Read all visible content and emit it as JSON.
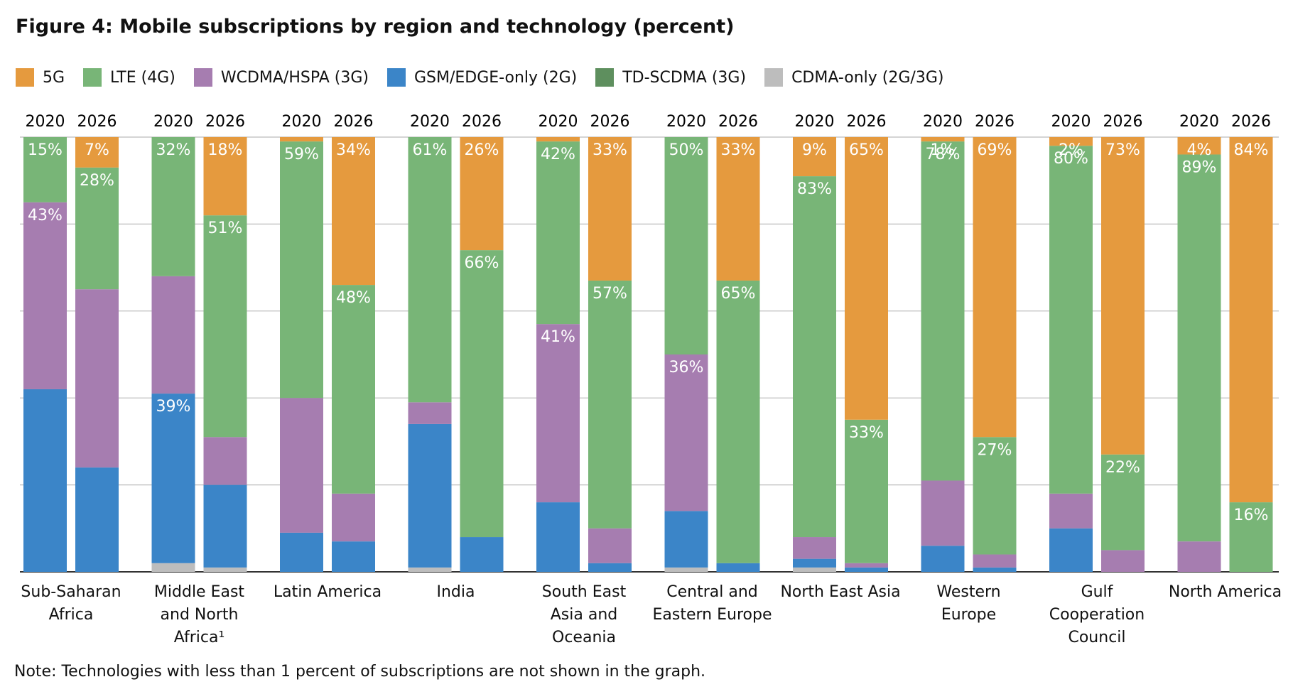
{
  "chart_data": {
    "type": "stacked_bar",
    "title": "Figure 4: Mobile subscriptions by region and technology (percent)",
    "note": "Note: Technologies with less than 1 percent of subscriptions are not shown in the graph.",
    "groups": [
      "Sub-Saharan Africa",
      "Middle East and North Africa¹",
      "Latin America",
      "India",
      "South East Asia and Oceania",
      "Central and Eastern Europe",
      "North East Asia",
      "Western Europe",
      "Gulf Cooperation Council",
      "North America"
    ],
    "categories": [
      "2020",
      "2026",
      "2020",
      "2026",
      "2020",
      "2026",
      "2020",
      "2026",
      "2020",
      "2026",
      "2020",
      "2026",
      "2020",
      "2026",
      "2020",
      "2026",
      "2020",
      "2026",
      "2020",
      "2026"
    ],
    "ylim": [
      0,
      100
    ],
    "yticks": [
      0,
      20,
      40,
      60,
      80,
      100
    ],
    "grid": true,
    "series": [
      {
        "name": "5G",
        "color": "#e59a3e",
        "values": [
          0,
          7,
          0,
          18,
          1,
          34,
          0,
          26,
          1,
          33,
          0,
          33,
          9,
          65,
          1,
          69,
          2,
          73,
          4,
          84
        ],
        "value_labels": [
          null,
          "7%",
          null,
          "18%",
          null,
          "34%",
          null,
          "26%",
          null,
          "33%",
          null,
          "33%",
          "9%",
          "65%",
          "1%",
          "69%",
          "2%",
          "73%",
          "4%",
          "84%"
        ]
      },
      {
        "name": "LTE (4G)",
        "color": "#78b577",
        "values": [
          15,
          28,
          32,
          51,
          59,
          48,
          61,
          66,
          42,
          57,
          50,
          65,
          83,
          33,
          78,
          27,
          80,
          22,
          89,
          16
        ],
        "value_labels": [
          "15%",
          "28%",
          "32%",
          "51%",
          "59%",
          "48%",
          "61%",
          "66%",
          "42%",
          "57%",
          "50%",
          "65%",
          "83%",
          "33%",
          "78%",
          "27%",
          "80%",
          "22%",
          "89%",
          "16%"
        ]
      },
      {
        "name": "WCDMA/HSPA (3G)",
        "color": "#a67db0",
        "values": [
          43,
          41,
          27,
          11,
          31,
          11,
          5,
          0,
          41,
          8,
          36,
          0,
          5,
          1,
          15,
          3,
          8,
          5,
          7,
          0
        ],
        "value_labels": [
          "43%",
          null,
          null,
          null,
          null,
          null,
          null,
          null,
          "41%",
          null,
          "36%",
          null,
          null,
          null,
          null,
          null,
          null,
          null,
          null,
          null
        ]
      },
      {
        "name": "GSM/EDGE-only (2G)",
        "color": "#3b85c8",
        "values": [
          42,
          24,
          39,
          19,
          9,
          7,
          33,
          8,
          16,
          2,
          13,
          2,
          2,
          1,
          6,
          1,
          10,
          0,
          0,
          0
        ],
        "value_labels": [
          null,
          null,
          "39%",
          null,
          null,
          null,
          null,
          null,
          null,
          null,
          null,
          null,
          null,
          null,
          null,
          null,
          null,
          null,
          null,
          null
        ]
      },
      {
        "name": "TD-SCDMA (3G)",
        "color": "#5e8f5e",
        "values": [
          0,
          0,
          0,
          0,
          0,
          0,
          0,
          0,
          0,
          0,
          0,
          0,
          0,
          0,
          0,
          0,
          0,
          0,
          0,
          0
        ]
      },
      {
        "name": "CDMA-only (2G/3G)",
        "color": "#bdbdbd",
        "values": [
          0,
          0,
          2,
          1,
          0,
          0,
          1,
          0,
          0,
          0,
          1,
          0,
          1,
          0,
          0,
          0,
          0,
          0,
          0,
          0
        ]
      }
    ]
  }
}
